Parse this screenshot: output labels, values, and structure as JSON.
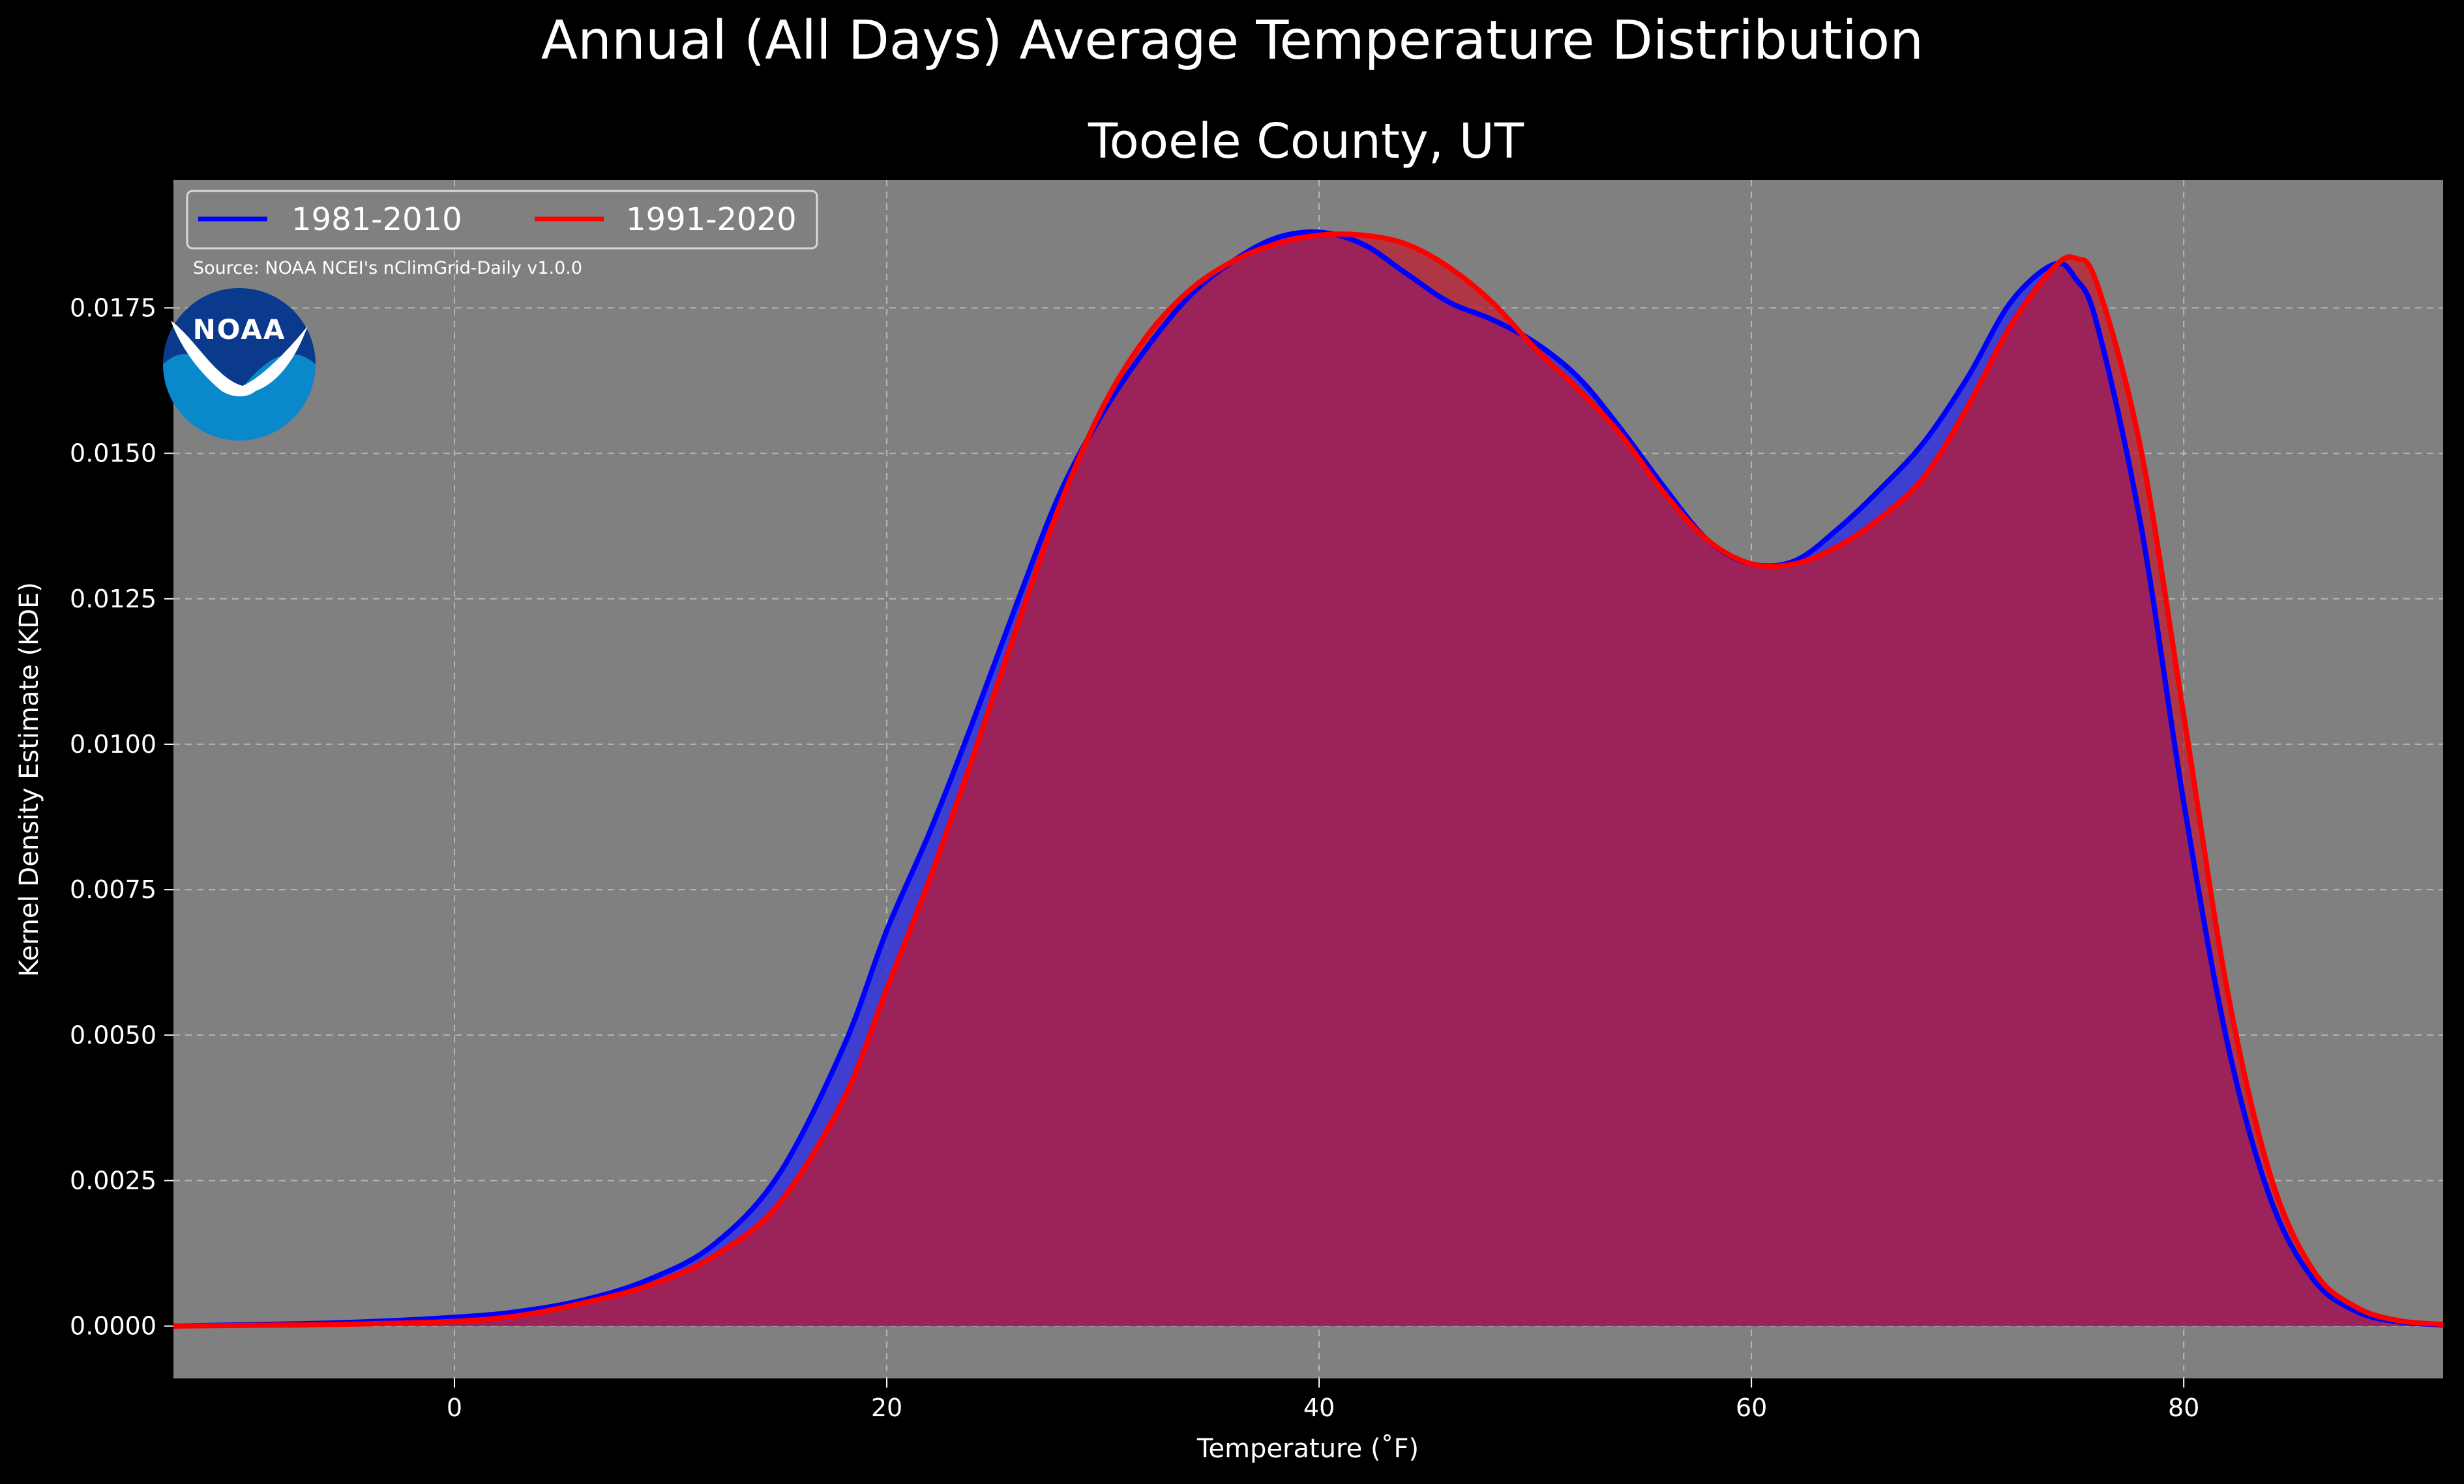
{
  "chart_data": {
    "type": "area",
    "title": "Annual (All Days) Average Temperature Distribution",
    "subtitle": "Tooele County, UT",
    "xlabel": "Temperature (˚F)",
    "ylabel": "Kernel Density Estimate (KDE)",
    "source": "Source: NOAA NCEI's nClimGrid-Daily v1.0.0",
    "logo_text": "NOAA",
    "xlim": [
      -13,
      92
    ],
    "ylim": [
      -0.0009,
      0.0197
    ],
    "x_ticks": [
      0,
      20,
      40,
      60,
      80
    ],
    "x_tick_labels": [
      "0",
      "20",
      "40",
      "60",
      "80"
    ],
    "y_ticks": [
      0,
      0.0025,
      0.005,
      0.0075,
      0.01,
      0.0125,
      0.015,
      0.0175
    ],
    "y_tick_labels": [
      "0.0000",
      "0.0025",
      "0.0050",
      "0.0075",
      "0.0100",
      "0.0125",
      "0.0150",
      "0.0175"
    ],
    "grid": true,
    "legend_position": "top-left",
    "colors": {
      "figure_bg": "#000000",
      "axes_bg": "#808080",
      "grid": "#c8c8c8",
      "text": "#ffffff"
    },
    "x": [
      -13,
      -10,
      -5,
      0,
      3,
      6,
      9,
      12,
      15,
      18,
      20,
      22,
      24,
      26,
      28,
      30,
      32,
      34,
      36,
      38,
      40,
      42,
      44,
      46,
      48,
      50,
      52,
      54,
      56,
      58,
      60,
      62,
      64,
      66,
      68,
      70,
      72,
      74,
      75,
      76,
      78,
      80,
      82,
      84,
      86,
      88,
      90,
      92
    ],
    "series": [
      {
        "name": "1981-2010",
        "color": "#0000ff",
        "fill": "#3333dd",
        "values": [
          0.0,
          2e-05,
          6e-05,
          0.00015,
          0.00025,
          0.00045,
          0.0008,
          0.0014,
          0.0026,
          0.0048,
          0.0068,
          0.0085,
          0.0104,
          0.0124,
          0.0143,
          0.0157,
          0.0168,
          0.0177,
          0.0183,
          0.0187,
          0.0188,
          0.0186,
          0.0181,
          0.0176,
          0.0173,
          0.0169,
          0.0163,
          0.0154,
          0.0144,
          0.0135,
          0.0131,
          0.01315,
          0.0137,
          0.0144,
          0.0152,
          0.0163,
          0.0176,
          0.01825,
          0.018,
          0.0172,
          0.0138,
          0.009,
          0.0049,
          0.0022,
          0.0008,
          0.00025,
          7e-05,
          2e-05
        ]
      },
      {
        "name": "1991-2020",
        "color": "#ff0000",
        "fill": "#c0192c",
        "values": [
          0.0,
          1e-05,
          3e-05,
          8e-05,
          0.00018,
          0.0004,
          0.0007,
          0.0012,
          0.0021,
          0.0039,
          0.0058,
          0.0077,
          0.0098,
          0.012,
          0.0141,
          0.0158,
          0.017,
          0.0178,
          0.0183,
          0.0186,
          0.01875,
          0.01875,
          0.0186,
          0.0182,
          0.0176,
          0.0168,
          0.0161,
          0.0153,
          0.0143,
          0.0135,
          0.0131,
          0.0131,
          0.0134,
          0.0139,
          0.0146,
          0.0158,
          0.0172,
          0.0182,
          0.01835,
          0.0179,
          0.0151,
          0.0105,
          0.0058,
          0.0026,
          0.00095,
          0.00032,
          9e-05,
          3e-05
        ]
      }
    ]
  }
}
